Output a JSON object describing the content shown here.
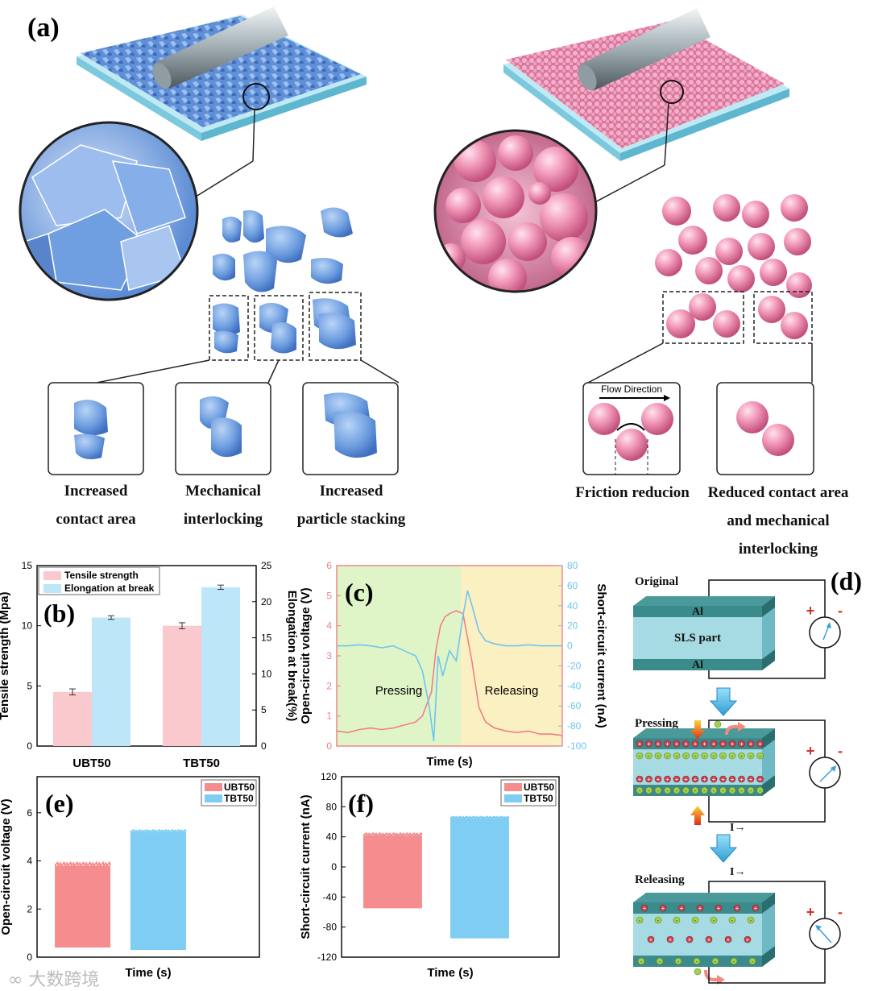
{
  "panel_a": {
    "label": "(a)",
    "left_captions": [
      {
        "line1": "Increased",
        "line2": "contact area"
      },
      {
        "line1": "Mechanical",
        "line2": "interlocking"
      },
      {
        "line1": "Increased",
        "line2": "particle stacking"
      }
    ],
    "flow_direction": "Flow Direction",
    "right_captions": [
      {
        "line1": "Friction reducion"
      },
      {
        "line1": "Reduced contact area",
        "line2": "and mechanical",
        "line3": "interlocking"
      }
    ]
  },
  "chart_data": [
    {
      "id": "b",
      "label": "(b)",
      "type": "bar",
      "categories": [
        "UBT50",
        "TBT50"
      ],
      "series": [
        {
          "name": "Tensile strength",
          "axis": "left",
          "color": "#f9c9cd",
          "values": [
            4.5,
            10.0
          ],
          "errors": [
            0.25,
            0.25
          ]
        },
        {
          "name": "Elongation at break",
          "axis": "right",
          "color": "#bde6f8",
          "values": [
            17.8,
            22.0
          ],
          "errors": [
            0.25,
            0.3
          ]
        }
      ],
      "ylabel": "Tensile strength (Mpa)",
      "y2label": "Elongation at break(%)",
      "ylim": [
        0,
        15
      ],
      "y2lim": [
        0,
        25
      ],
      "yticks": [
        0,
        5,
        10,
        15
      ],
      "y2ticks": [
        0,
        5,
        10,
        15,
        20,
        25
      ],
      "legend": "top-left"
    },
    {
      "id": "c",
      "label": "(c)",
      "type": "line",
      "xlabel": "Time (s)",
      "ylabel": "Open-circuit voltage (V)",
      "y2label": "Short-circuit current (nA)",
      "ylim": [
        0,
        6
      ],
      "y2lim": [
        -100,
        80
      ],
      "yticks": [
        0,
        1,
        2,
        3,
        4,
        5,
        6
      ],
      "y2ticks": [
        -100,
        -80,
        -60,
        -40,
        -20,
        0,
        20,
        40,
        60,
        80
      ],
      "regions": [
        {
          "label": "Pressing",
          "from": 0,
          "to": 0.55,
          "color": "#dff5c8"
        },
        {
          "label": "Releasing",
          "from": 0.55,
          "to": 1,
          "color": "#fbf0c2"
        }
      ],
      "series": [
        {
          "name": "Voltage",
          "axis": "left",
          "color": "#f07f86",
          "x": [
            0,
            0.05,
            0.1,
            0.15,
            0.2,
            0.25,
            0.3,
            0.35,
            0.38,
            0.42,
            0.44,
            0.46,
            0.48,
            0.5,
            0.53,
            0.56,
            0.6,
            0.63,
            0.66,
            0.7,
            0.75,
            0.8,
            0.85,
            0.9,
            0.95,
            1.0
          ],
          "y": [
            0.5,
            0.45,
            0.55,
            0.6,
            0.55,
            0.6,
            0.7,
            0.8,
            1.0,
            1.8,
            3.2,
            4.0,
            4.3,
            4.4,
            4.5,
            4.4,
            2.8,
            1.3,
            0.8,
            0.6,
            0.5,
            0.45,
            0.5,
            0.4,
            0.4,
            0.35
          ]
        },
        {
          "name": "Current",
          "axis": "right",
          "color": "#6ec5ee",
          "x": [
            0,
            0.05,
            0.1,
            0.15,
            0.2,
            0.25,
            0.3,
            0.35,
            0.38,
            0.41,
            0.43,
            0.45,
            0.47,
            0.5,
            0.53,
            0.56,
            0.58,
            0.6,
            0.63,
            0.66,
            0.7,
            0.75,
            0.8,
            0.85,
            0.9,
            0.95,
            1.0
          ],
          "y": [
            0,
            0,
            1,
            0,
            -2,
            0,
            -5,
            -10,
            -25,
            -60,
            -95,
            -10,
            -30,
            -5,
            -15,
            30,
            55,
            40,
            15,
            5,
            2,
            0,
            0,
            1,
            0,
            0,
            0
          ]
        }
      ]
    },
    {
      "id": "e",
      "label": "(e)",
      "type": "area",
      "xlabel": "Time (s)",
      "ylabel": "Open-circuit voltage (V)",
      "ylim": [
        0,
        7.5
      ],
      "yticks": [
        0,
        2,
        4,
        6
      ],
      "legend": "top-right",
      "series": [
        {
          "name": "UBT50",
          "color": "#f58d8f",
          "min": 0.4,
          "max": 3.8,
          "x": [
            0.08,
            0.33
          ]
        },
        {
          "name": "TBT50",
          "color": "#7fcdf2",
          "min": 0.3,
          "max": 5.2,
          "x": [
            0.42,
            0.67
          ]
        }
      ]
    },
    {
      "id": "f",
      "label": "(f)",
      "type": "area",
      "xlabel": "Time (s)",
      "ylabel": "Short-circuit current (nA)",
      "ylim": [
        -120,
        120
      ],
      "yticks": [
        -120,
        -80,
        -40,
        0,
        40,
        80,
        120
      ],
      "legend": "top-right",
      "series": [
        {
          "name": "UBT50",
          "color": "#f58d8f",
          "min": -55,
          "max": 42,
          "x": [
            0.1,
            0.37
          ]
        },
        {
          "name": "TBT50",
          "color": "#7fcdf2",
          "min": -95,
          "max": 65,
          "x": [
            0.5,
            0.77
          ]
        }
      ]
    }
  ],
  "panel_d": {
    "label": "(d)",
    "states": [
      "Original",
      "Pressing",
      "Releasing"
    ],
    "electrode": "Al",
    "part": "SLS part",
    "current_label": "I→",
    "plus": "+",
    "minus": "-"
  },
  "watermark": "大数跨境"
}
